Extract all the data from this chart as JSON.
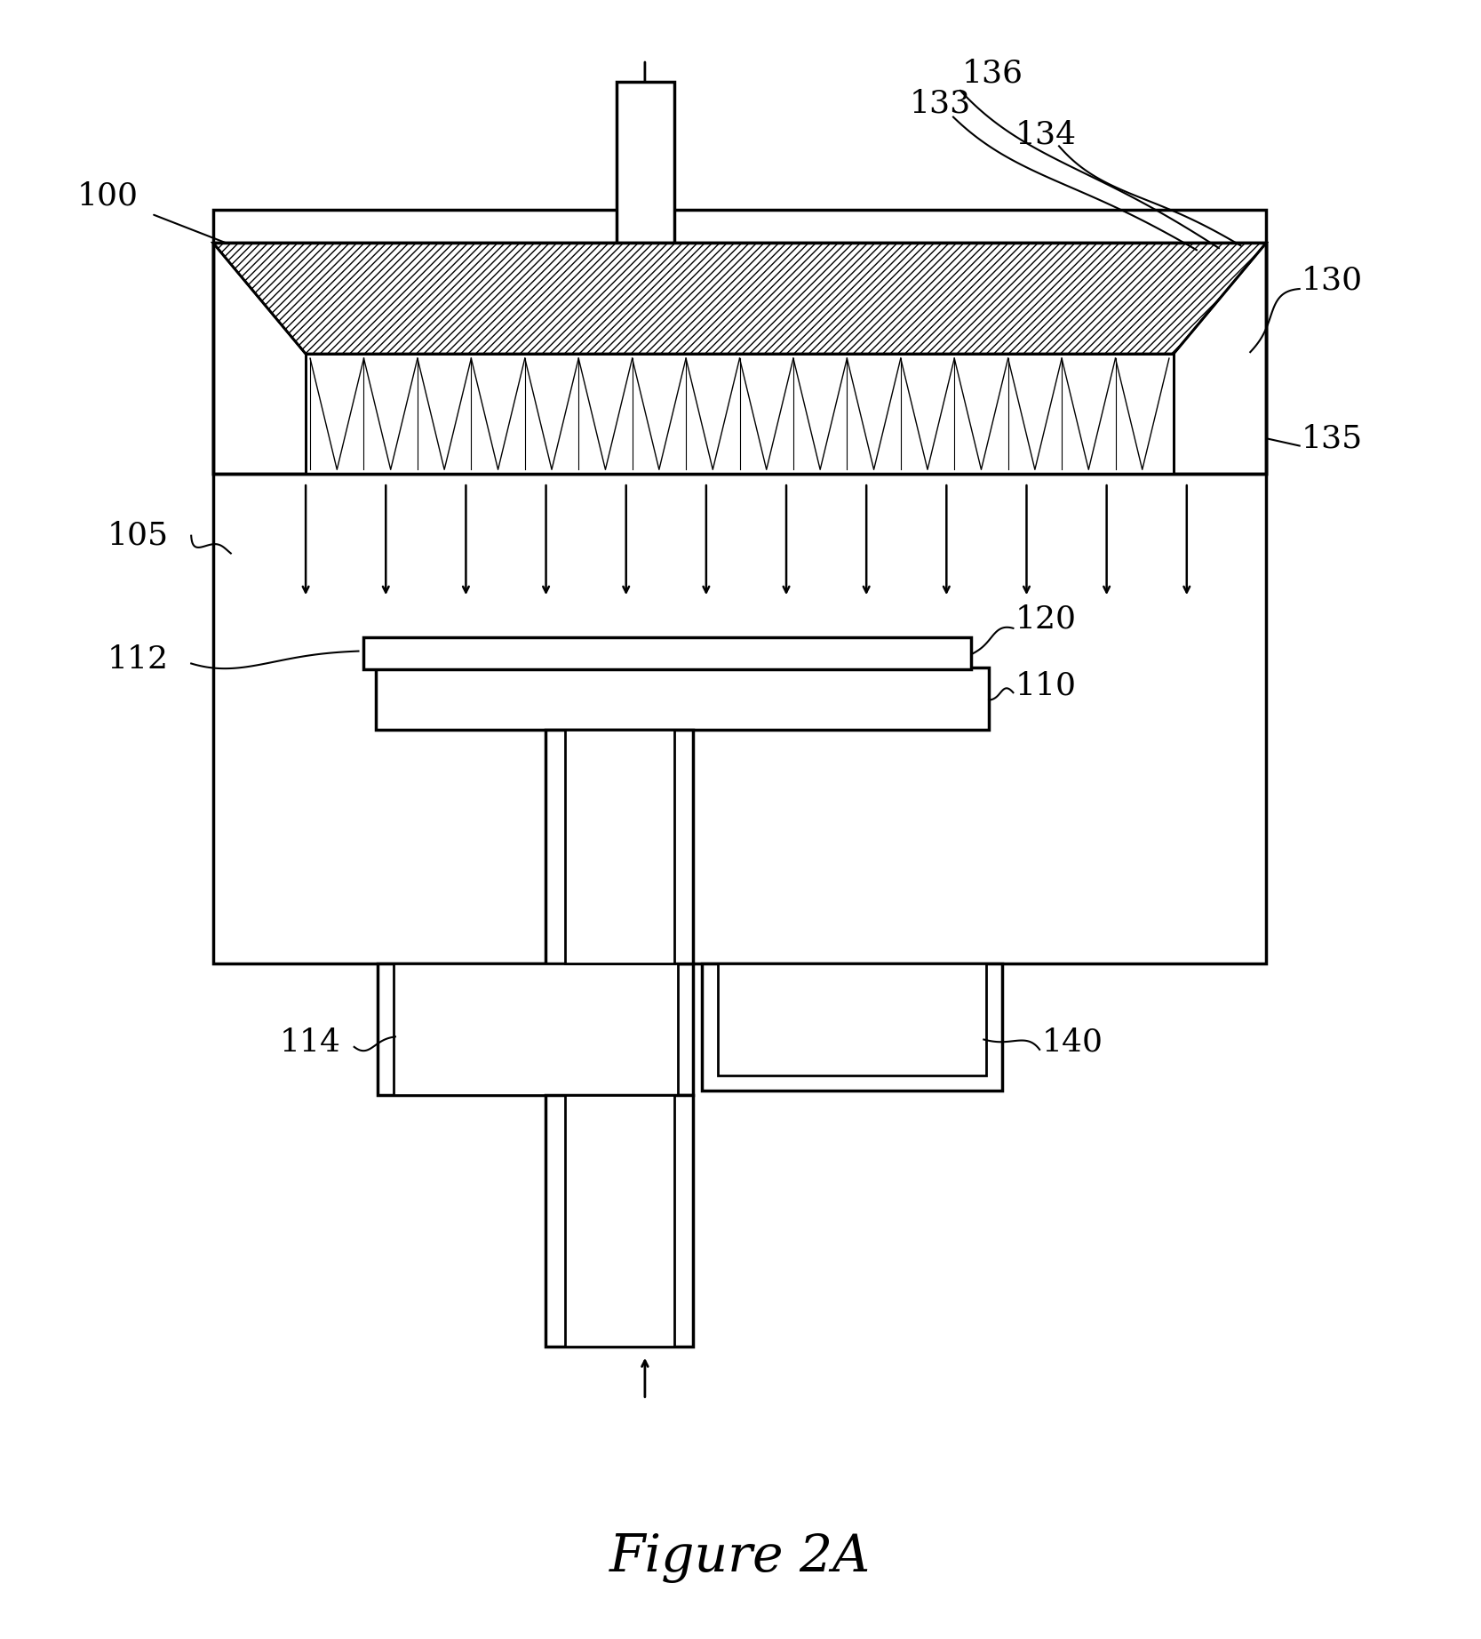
{
  "title": "Figure 2A",
  "bg_color": "#ffffff",
  "line_color": "#000000",
  "fig_width": 16.67,
  "fig_height": 18.44,
  "dpi": 100
}
